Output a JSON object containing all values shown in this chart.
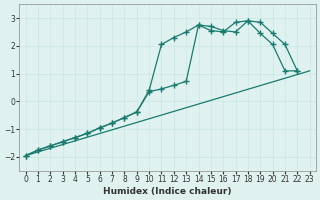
{
  "xlabel": "Humidex (Indice chaleur)",
  "ylabel": "",
  "xlim": [
    -0.5,
    23.5
  ],
  "ylim": [
    -2.5,
    3.5
  ],
  "xticks": [
    0,
    1,
    2,
    3,
    4,
    5,
    6,
    7,
    8,
    9,
    10,
    11,
    12,
    13,
    14,
    15,
    16,
    17,
    18,
    19,
    20,
    21,
    22,
    23
  ],
  "yticks": [
    -2,
    -1,
    0,
    1,
    2,
    3
  ],
  "bg_color": "#dff2f0",
  "line_color": "#1a7a6e",
  "grid_color": "#c8e8e4",
  "series": [
    {
      "x": [
        0,
        23
      ],
      "y": [
        -1.95,
        1.1
      ],
      "marker": null,
      "linestyle": "-",
      "linewidth": 0.9
    },
    {
      "x": [
        0,
        1,
        2,
        3,
        4,
        5,
        6,
        7,
        8,
        9,
        10,
        11,
        12,
        13,
        14,
        15,
        16,
        17,
        18,
        19,
        20,
        21,
        22
      ],
      "y": [
        -1.95,
        -1.75,
        -1.6,
        -1.45,
        -1.3,
        -1.15,
        -0.95,
        -0.78,
        -0.58,
        -0.38,
        0.35,
        0.45,
        0.58,
        0.72,
        2.75,
        2.55,
        2.5,
        2.85,
        2.9,
        2.45,
        2.05,
        1.1,
        1.1
      ],
      "marker": "+",
      "linestyle": "-",
      "linewidth": 0.9,
      "markersize": 4
    },
    {
      "x": [
        0,
        1,
        2,
        3,
        4,
        5,
        6,
        7,
        8,
        9,
        10,
        11,
        12,
        13,
        14,
        15,
        16,
        17,
        18,
        19,
        20,
        21,
        22
      ],
      "y": [
        -1.95,
        -1.75,
        -1.6,
        -1.45,
        -1.3,
        -1.15,
        -0.95,
        -0.78,
        -0.58,
        -0.38,
        0.4,
        2.05,
        2.3,
        2.5,
        2.75,
        2.7,
        2.55,
        2.5,
        2.9,
        2.85,
        2.45,
        2.05,
        1.1
      ],
      "marker": "+",
      "linestyle": "-",
      "linewidth": 0.9,
      "markersize": 4
    }
  ]
}
